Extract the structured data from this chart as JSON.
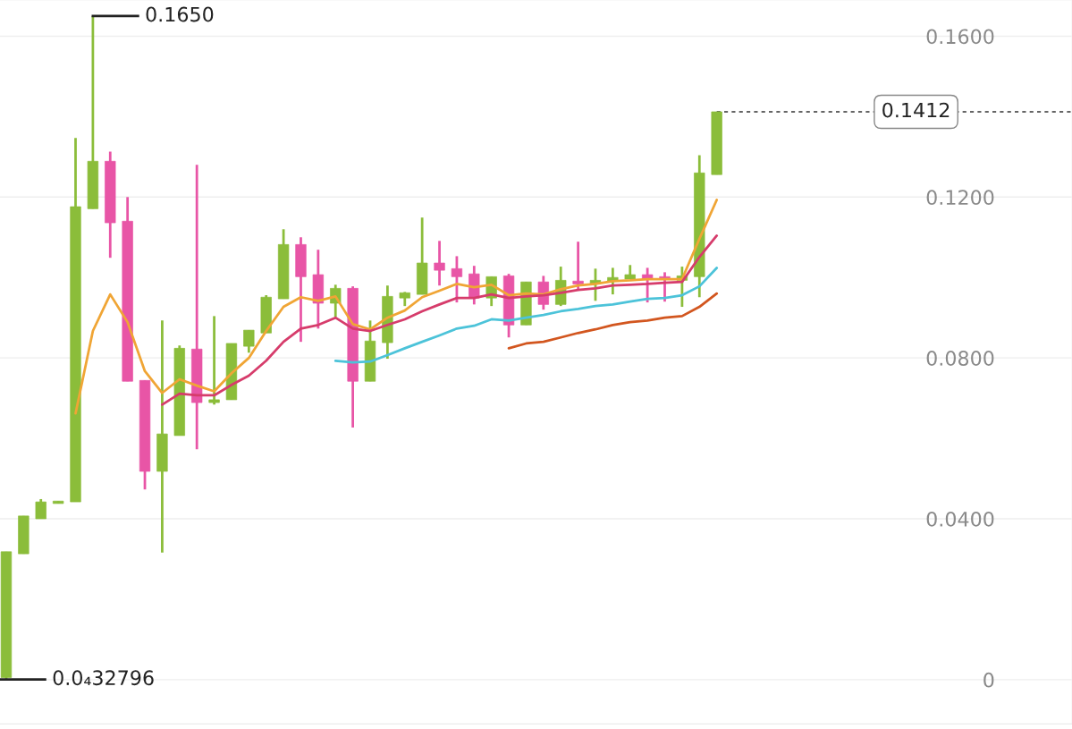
{
  "chart_data": {
    "type": "candlestick",
    "categories": [
      null,
      null,
      null,
      null,
      null,
      null,
      null,
      null,
      null,
      null,
      null,
      null,
      null,
      null,
      null,
      null,
      null,
      null,
      null,
      null,
      null,
      null,
      null,
      null,
      null,
      null,
      null,
      null,
      null,
      null,
      null,
      null,
      null,
      null,
      null,
      null,
      null,
      null,
      null,
      null,
      null,
      null
    ],
    "ohlc": [
      [
        0.0005,
        0.0318,
        3.2796e-05,
        0.0318
      ],
      [
        0.0313,
        0.0407,
        0.0313,
        0.0407
      ],
      [
        0.04,
        0.0449,
        0.04,
        0.0442
      ],
      [
        0.0438,
        0.0444,
        0.0438,
        0.0444
      ],
      [
        0.0442,
        0.1347,
        0.0442,
        0.1176
      ],
      [
        0.1171,
        0.165,
        0.1171,
        0.1289
      ],
      [
        0.1289,
        0.1313,
        0.1049,
        0.1136
      ],
      [
        0.114,
        0.12,
        0.0742,
        0.0742
      ],
      [
        0.0744,
        0.0744,
        0.0473,
        0.0518
      ],
      [
        0.0518,
        0.0893,
        0.0316,
        0.0611
      ],
      [
        0.0607,
        0.0831,
        0.0607,
        0.0824
      ],
      [
        0.0822,
        0.128,
        0.0573,
        0.0689
      ],
      [
        0.0689,
        0.0904,
        0.0684,
        0.0696
      ],
      [
        0.0696,
        0.0836,
        0.0696,
        0.0836
      ],
      [
        0.0829,
        0.0869,
        0.0813,
        0.0869
      ],
      [
        0.0862,
        0.0956,
        0.0862,
        0.0951
      ],
      [
        0.0947,
        0.112,
        0.0947,
        0.1082
      ],
      [
        0.1082,
        0.11,
        0.084,
        0.1002
      ],
      [
        0.1007,
        0.1069,
        0.0873,
        0.0936
      ],
      [
        0.0936,
        0.0982,
        0.0902,
        0.0973
      ],
      [
        0.0973,
        0.0978,
        0.0627,
        0.0742
      ],
      [
        0.0742,
        0.0893,
        0.0742,
        0.0842
      ],
      [
        0.0838,
        0.098,
        0.0798,
        0.0953
      ],
      [
        0.0949,
        0.0964,
        0.0929,
        0.0962
      ],
      [
        0.0958,
        0.1149,
        0.0958,
        0.1036
      ],
      [
        0.1036,
        0.1091,
        0.098,
        0.1018
      ],
      [
        0.1022,
        0.1053,
        0.0938,
        0.1002
      ],
      [
        0.1009,
        0.1029,
        0.0933,
        0.0949
      ],
      [
        0.0949,
        0.1002,
        0.0929,
        0.1002
      ],
      [
        0.1004,
        0.1009,
        0.0851,
        0.0882
      ],
      [
        0.0882,
        0.0989,
        0.0882,
        0.0989
      ],
      [
        0.0989,
        0.1004,
        0.092,
        0.0933
      ],
      [
        0.0933,
        0.1027,
        0.0929,
        0.0993
      ],
      [
        0.0991,
        0.1089,
        0.0967,
        0.0984
      ],
      [
        0.0984,
        0.1022,
        0.0942,
        0.0993
      ],
      [
        0.0991,
        0.1024,
        0.0958,
        0.1
      ],
      [
        0.0996,
        0.1031,
        0.0996,
        0.1007
      ],
      [
        0.1007,
        0.1024,
        0.0938,
        0.0996
      ],
      [
        0.1002,
        0.1013,
        0.094,
        0.0996
      ],
      [
        0.0993,
        0.1027,
        0.0927,
        0.1004
      ],
      [
        0.1002,
        0.1304,
        0.0951,
        0.126
      ],
      [
        0.1256,
        0.1412,
        0.1256,
        0.1412
      ]
    ],
    "colors": [
      "#8bbd3a",
      "#8bbd3a",
      "#8bbd3a",
      "#8bbd3a",
      "#8bbd3a",
      "#8bbd3a",
      "#e855a6",
      "#e855a6",
      "#e855a6",
      "#8bbd3a",
      "#8bbd3a",
      "#e855a6",
      "#8bbd3a",
      "#8bbd3a",
      "#8bbd3a",
      "#8bbd3a",
      "#8bbd3a",
      "#e855a6",
      "#e855a6",
      "#8bbd3a",
      "#e855a6",
      "#8bbd3a",
      "#8bbd3a",
      "#8bbd3a",
      "#8bbd3a",
      "#e855a6",
      "#e855a6",
      "#e855a6",
      "#8bbd3a",
      "#e855a6",
      "#8bbd3a",
      "#e855a6",
      "#8bbd3a",
      "#e855a6",
      "#8bbd3a",
      "#8bbd3a",
      "#8bbd3a",
      "#e855a6",
      "#e855a6",
      "#8bbd3a",
      "#8bbd3a",
      "#8bbd3a"
    ],
    "series": [
      {
        "type": "line",
        "color": "#f0a535",
        "values": [
          null,
          null,
          null,
          null,
          0.0662,
          0.0867,
          0.0958,
          0.0889,
          0.0767,
          0.0713,
          0.0747,
          0.0731,
          0.0717,
          0.0762,
          0.08,
          0.0867,
          0.0927,
          0.0951,
          0.0942,
          0.0953,
          0.0884,
          0.0871,
          0.09,
          0.0918,
          0.0951,
          0.0967,
          0.0984,
          0.0976,
          0.0982,
          0.0956,
          0.096,
          0.0958,
          0.0971,
          0.098,
          0.0984,
          0.0991,
          0.0993,
          0.0996,
          0.0996,
          0.0996,
          0.1096,
          0.1193
        ]
      },
      {
        "type": "line",
        "color": "#d63c6b",
        "values": [
          null,
          null,
          null,
          null,
          null,
          null,
          null,
          null,
          null,
          0.0684,
          0.0711,
          0.0707,
          0.0707,
          0.0733,
          0.0756,
          0.0793,
          0.084,
          0.0873,
          0.0882,
          0.09,
          0.0873,
          0.0867,
          0.0882,
          0.0896,
          0.0916,
          0.0933,
          0.0949,
          0.0949,
          0.0958,
          0.0949,
          0.0953,
          0.0956,
          0.0962,
          0.0969,
          0.0973,
          0.098,
          0.0982,
          0.0984,
          0.0987,
          0.0989,
          0.1051,
          0.1104
        ]
      },
      {
        "type": "line",
        "color": "#4cc3d9",
        "values": [
          null,
          null,
          null,
          null,
          null,
          null,
          null,
          null,
          null,
          null,
          null,
          null,
          null,
          null,
          null,
          null,
          null,
          null,
          null,
          0.0793,
          0.0789,
          0.0791,
          0.0807,
          0.0824,
          0.084,
          0.0856,
          0.0873,
          0.088,
          0.0896,
          0.0893,
          0.09,
          0.0907,
          0.0916,
          0.0922,
          0.0929,
          0.0933,
          0.094,
          0.0947,
          0.0949,
          0.0956,
          0.0978,
          0.1024
        ]
      },
      {
        "type": "line",
        "color": "#d2561f",
        "values": [
          null,
          null,
          null,
          null,
          null,
          null,
          null,
          null,
          null,
          null,
          null,
          null,
          null,
          null,
          null,
          null,
          null,
          null,
          null,
          null,
          null,
          null,
          null,
          null,
          null,
          null,
          null,
          null,
          null,
          0.0824,
          0.0836,
          0.084,
          0.0851,
          0.0862,
          0.0871,
          0.0882,
          0.0889,
          0.0893,
          0.09,
          0.0904,
          0.0927,
          0.096
        ]
      }
    ],
    "ylim": [
      -0.011,
      0.169
    ],
    "yticks": [
      {
        "value": 0,
        "label": "0"
      },
      {
        "value": 0.04,
        "label": "0.0400"
      },
      {
        "value": 0.08,
        "label": "0.0800"
      },
      {
        "value": 0.12,
        "label": "0.1200"
      },
      {
        "value": 0.16,
        "label": "0.1600"
      }
    ],
    "grid": "y",
    "ref_lines": [
      {
        "axis": "y",
        "value": 0.1412,
        "label": "0.1412",
        "color": "#333333",
        "line_style": "dashed"
      }
    ],
    "annotations": [
      "0.1650",
      "0.0₄32796"
    ]
  }
}
